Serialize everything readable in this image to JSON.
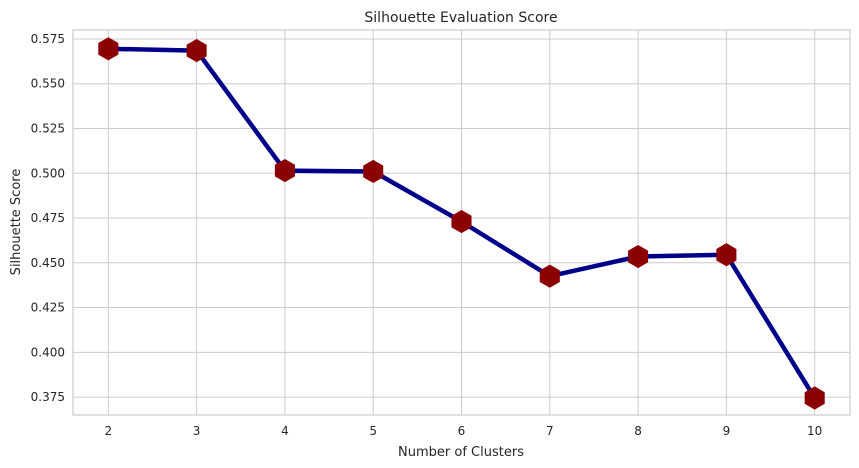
{
  "chart_data": {
    "type": "line",
    "title": "Silhouette Evaluation Score",
    "xlabel": "Number of Clusters",
    "ylabel": "Silhouette Score",
    "x": [
      2,
      3,
      4,
      5,
      6,
      7,
      8,
      9,
      10
    ],
    "series": [
      {
        "values": [
          0.5695,
          0.5685,
          0.5015,
          0.501,
          0.473,
          0.4425,
          0.4535,
          0.4545,
          0.3745
        ]
      }
    ],
    "xticks": [
      "2",
      "3",
      "4",
      "5",
      "6",
      "7",
      "8",
      "9",
      "10"
    ],
    "yticks": [
      "0.375",
      "0.400",
      "0.425",
      "0.450",
      "0.475",
      "0.500",
      "0.525",
      "0.550",
      "0.575"
    ],
    "xlim": [
      1.6,
      10.4
    ],
    "ylim": [
      0.365,
      0.58
    ],
    "grid": true,
    "line_color": "#00008b",
    "marker_color": "#8b0000",
    "marker_shape": "hexagon"
  }
}
